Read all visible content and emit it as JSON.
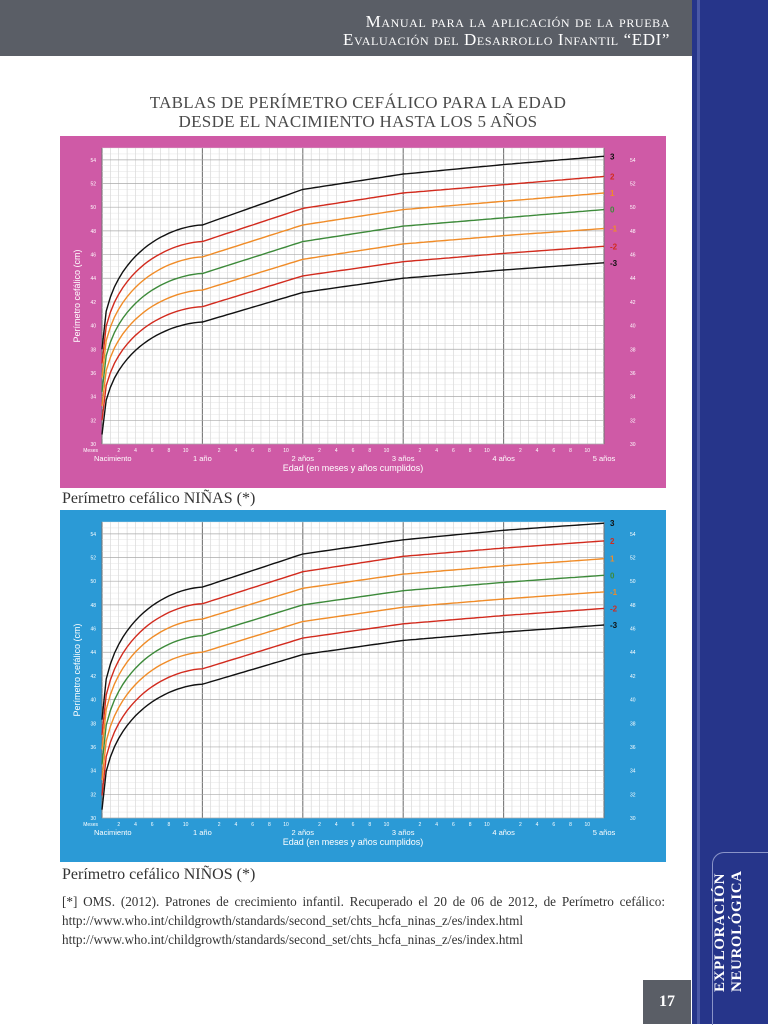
{
  "header": {
    "line1": "Manual para la aplicación de la prueba",
    "line2": "Evaluación del Desarrollo Infantil “EDI”"
  },
  "sidebar": {
    "line1": "EXPLORACIÓN",
    "line2": "NEUROLÓGICA"
  },
  "page_number": "17",
  "title": {
    "line1": "TABLAS DE PERÍMETRO CEFÁLICO PARA LA EDAD",
    "line2": "DESDE EL NACIMIENTO HASTA LOS 5 AÑOS"
  },
  "captions": {
    "girls": "Perímetro cefálico NIÑAS (*)",
    "boys": "Perímetro cefálico NIÑOS (*)"
  },
  "reference": {
    "text": "[*] OMS. (2012). Patrones de crecimiento infantil. Recuperado el 20 de 06 de 2012, de Perímetro cefálico: http://www.who.int/childgrowth/standards/second_set/chts_hcfa_ninas_z/es/index.html",
    "url2": "http://www.who.int/childgrowth/standards/second_set/chts_hcfa_ninas_z/es/index.html"
  },
  "chart_data": [
    {
      "type": "line",
      "background": "#cf5aa6",
      "ylabel": "Perímetro cefálico (cm)",
      "xlabel": "Edad (en meses y años cumplidos)",
      "y_ticks": [
        "30",
        "32",
        "34",
        "36",
        "38",
        "40",
        "42",
        "44",
        "46",
        "48",
        "50",
        "52",
        "54"
      ],
      "ylim": [
        30,
        55
      ],
      "x_year_labels": [
        "Nacimiento",
        "1 año",
        "2 años",
        "3 años",
        "4 años",
        "5 años"
      ],
      "x_month_labels": [
        "2",
        "4",
        "6",
        "8",
        "10"
      ],
      "x_start_label": "Meses",
      "grid": true,
      "x_months": [
        0,
        6,
        12,
        24,
        36,
        48,
        60
      ],
      "series": [
        {
          "name": "3",
          "color": "#111111",
          "values": [
            38.0,
            45.5,
            48.5,
            51.5,
            52.8,
            53.6,
            54.3
          ]
        },
        {
          "name": "2",
          "color": "#d22b1e",
          "values": [
            36.8,
            44.1,
            47.1,
            49.9,
            51.2,
            51.9,
            52.6
          ]
        },
        {
          "name": "1",
          "color": "#f08c28",
          "values": [
            35.6,
            42.8,
            45.8,
            48.5,
            49.8,
            50.5,
            51.2
          ]
        },
        {
          "name": "0",
          "color": "#3d8a3a",
          "values": [
            34.4,
            41.5,
            44.4,
            47.1,
            48.4,
            49.1,
            49.8
          ]
        },
        {
          "name": "-1",
          "color": "#f08c28",
          "values": [
            33.2,
            40.2,
            43.0,
            45.6,
            46.9,
            47.6,
            48.2
          ]
        },
        {
          "name": "-2",
          "color": "#d22b1e",
          "values": [
            32.0,
            38.9,
            41.6,
            44.2,
            45.4,
            46.1,
            46.7
          ]
        },
        {
          "name": "-3",
          "color": "#111111",
          "values": [
            30.8,
            37.6,
            40.3,
            42.8,
            44.0,
            44.7,
            45.3
          ]
        }
      ]
    },
    {
      "type": "line",
      "background": "#2b9ad6",
      "ylabel": "Perímetro cefálico (cm)",
      "xlabel": "Edad (en meses y años cumplidos)",
      "y_ticks": [
        "30",
        "32",
        "34",
        "36",
        "38",
        "40",
        "42",
        "44",
        "46",
        "48",
        "50",
        "52",
        "54"
      ],
      "ylim": [
        30,
        55
      ],
      "x_year_labels": [
        "Nacimiento",
        "1 año",
        "2 años",
        "3 años",
        "4 años",
        "5 años"
      ],
      "x_month_labels": [
        "2",
        "4",
        "6",
        "8",
        "10"
      ],
      "x_start_label": "Meses",
      "grid": true,
      "x_months": [
        0,
        6,
        12,
        24,
        36,
        48,
        60
      ],
      "series": [
        {
          "name": "3",
          "color": "#111111",
          "values": [
            38.3,
            46.3,
            49.5,
            52.3,
            53.5,
            54.3,
            54.9
          ]
        },
        {
          "name": "2",
          "color": "#d22b1e",
          "values": [
            37.0,
            45.0,
            48.1,
            50.8,
            52.1,
            52.8,
            53.4
          ]
        },
        {
          "name": "1",
          "color": "#f08c28",
          "values": [
            35.8,
            43.6,
            46.8,
            49.4,
            50.6,
            51.3,
            51.9
          ]
        },
        {
          "name": "0",
          "color": "#3d8a3a",
          "values": [
            34.5,
            42.3,
            45.4,
            48.0,
            49.2,
            49.9,
            50.5
          ]
        },
        {
          "name": "-1",
          "color": "#f08c28",
          "values": [
            33.2,
            41.0,
            44.0,
            46.6,
            47.8,
            48.5,
            49.1
          ]
        },
        {
          "name": "-2",
          "color": "#d22b1e",
          "values": [
            31.9,
            39.7,
            42.6,
            45.2,
            46.4,
            47.1,
            47.7
          ]
        },
        {
          "name": "-3",
          "color": "#111111",
          "values": [
            30.7,
            38.4,
            41.3,
            43.8,
            45.0,
            45.7,
            46.3
          ]
        }
      ]
    }
  ]
}
